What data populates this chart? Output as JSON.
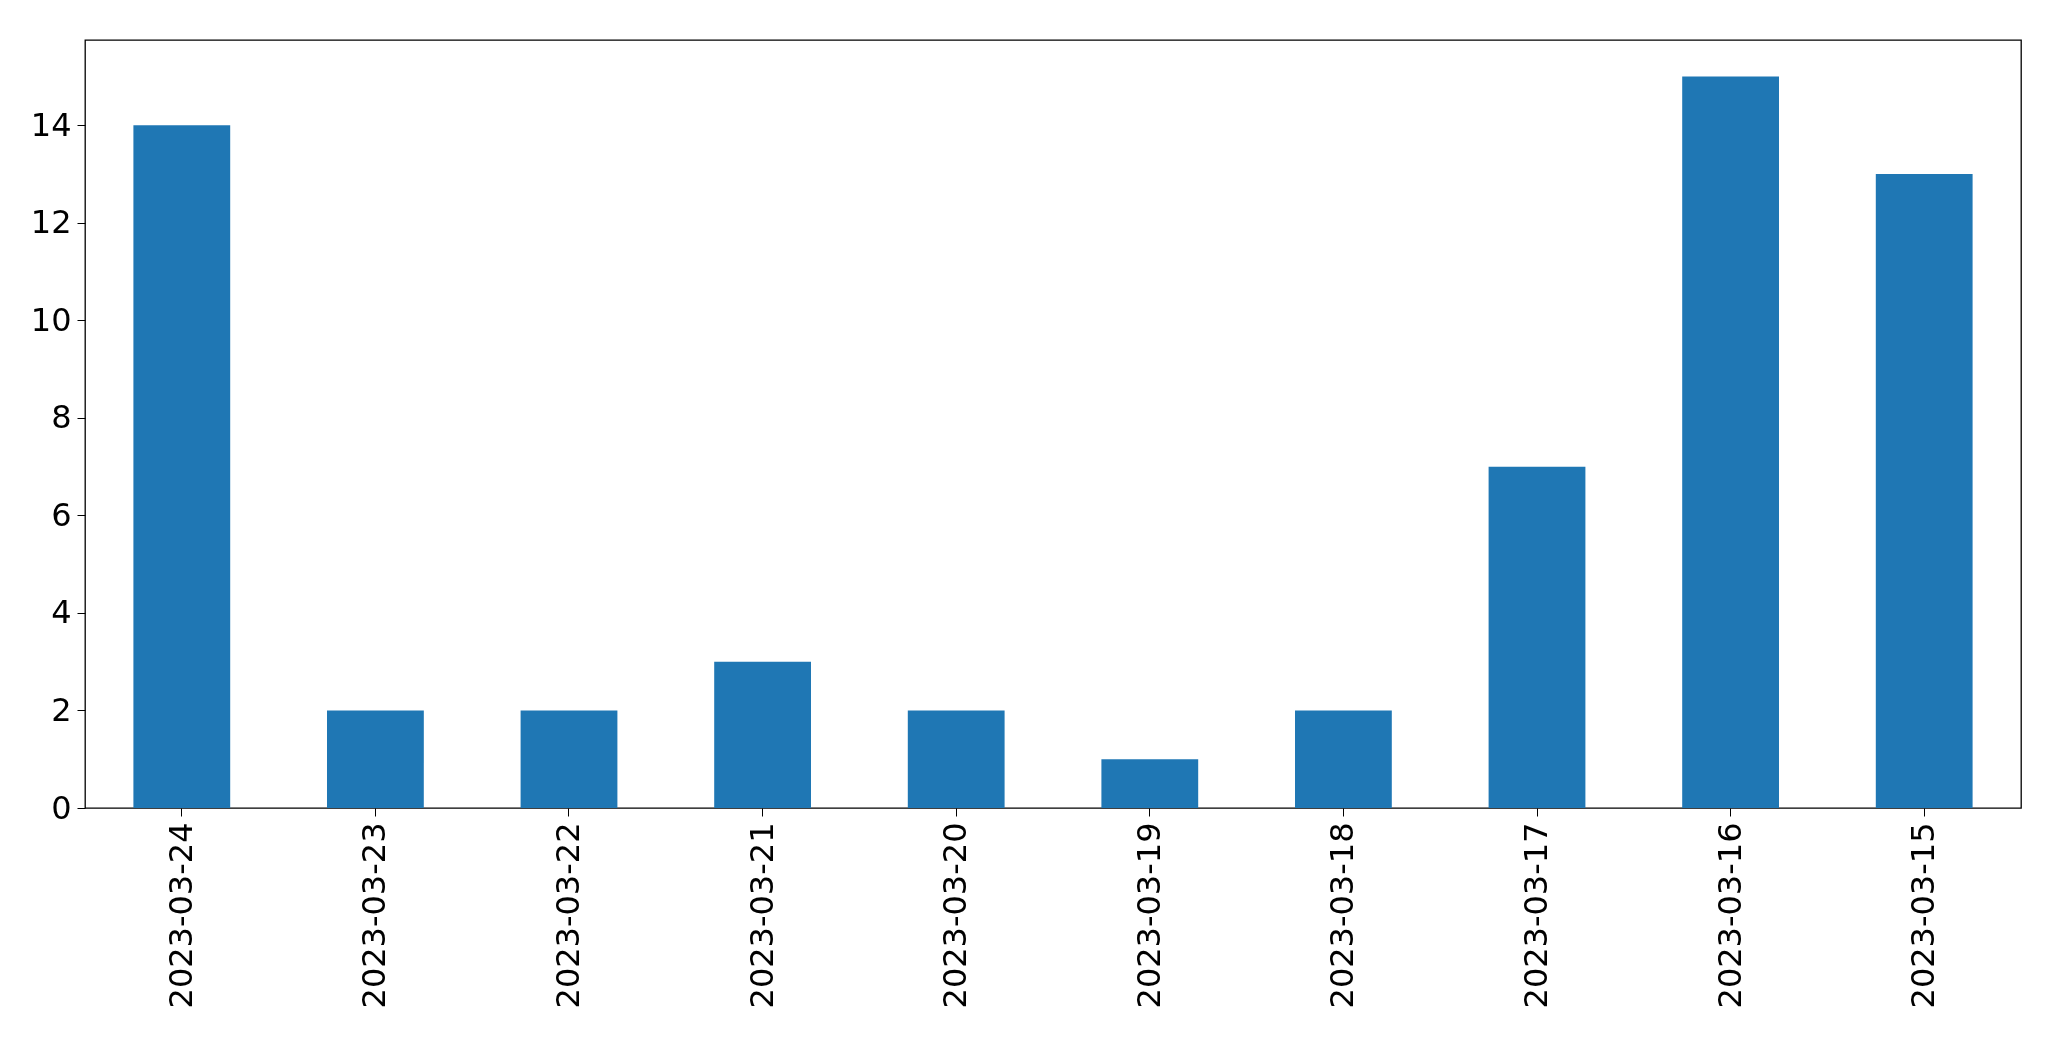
{
  "chart_data": {
    "type": "bar",
    "categories": [
      "2023-03-24",
      "2023-03-23",
      "2023-03-22",
      "2023-03-21",
      "2023-03-20",
      "2023-03-19",
      "2023-03-18",
      "2023-03-17",
      "2023-03-16",
      "2023-03-15"
    ],
    "series": [
      {
        "color": "#1f77b4",
        "values": [
          14,
          2,
          2,
          3,
          2,
          1,
          2,
          7,
          15,
          13
        ]
      }
    ],
    "ylim": [
      0,
      15.75
    ],
    "yticks": [
      0,
      2,
      4,
      6,
      8,
      10,
      12,
      14
    ],
    "grid": false
  }
}
